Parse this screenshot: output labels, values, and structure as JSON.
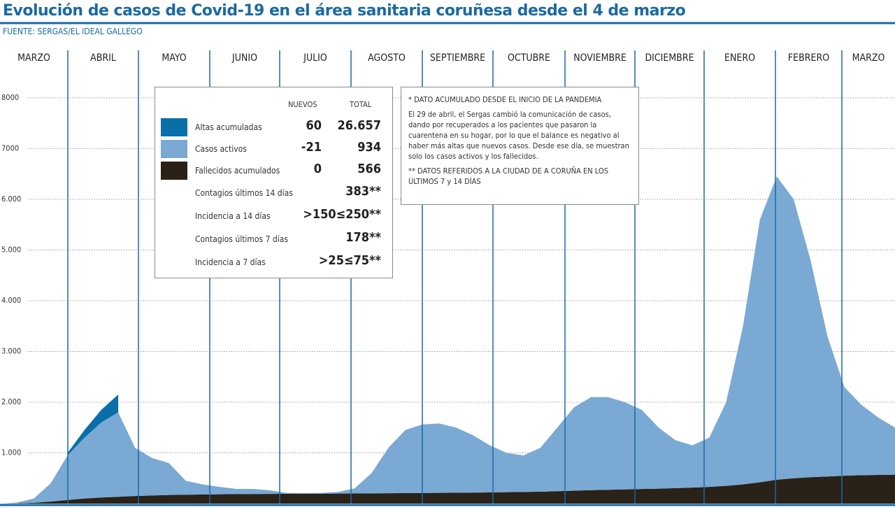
{
  "chart_data": {
    "type": "stacked-area",
    "title": "Evolución de casos de Covid-19 en el área sanitaria coruñesa desde el 4 de marzo",
    "source": "FUENTE: SERGAS/EL IDEAL GALLEGO",
    "months": [
      "MARZO",
      "ABRIL",
      "MAYO",
      "JUNIO",
      "JULIO",
      "AGOSTO",
      "SEPTIEMBRE",
      "OCTUBRE",
      "NOVIEMBRE",
      "DICIEMBRE",
      "ENERO",
      "FEBRERO",
      "MARZO"
    ],
    "ylim": [
      0,
      8550
    ],
    "yticks": [
      {
        "value": 1000,
        "label": "1.000"
      },
      {
        "value": 2000,
        "label": "2.000"
      },
      {
        "value": 3000,
        "label": "3.000"
      },
      {
        "value": 4000,
        "label": "4.000"
      },
      {
        "value": 5000,
        "label": "5.000"
      },
      {
        "value": 6000,
        "label": "6.000"
      },
      7000,
      8000
    ],
    "grid": true,
    "series": [
      {
        "name": "Fallecidos acumulados",
        "color": "#2a2118",
        "nuevos": "0",
        "total": "566",
        "values": [
          0,
          5,
          15,
          40,
          70,
          100,
          120,
          135,
          150,
          160,
          170,
          175,
          180,
          185,
          188,
          190,
          192,
          195,
          196,
          197,
          198,
          200,
          202,
          205,
          207,
          210,
          212,
          215,
          218,
          221,
          225,
          230,
          235,
          245,
          255,
          265,
          272,
          280,
          288,
          295,
          305,
          315,
          330,
          350,
          380,
          420,
          470,
          500,
          520,
          535,
          550,
          560,
          565,
          570
        ]
      },
      {
        "name": "Casos activos",
        "color": "#7aa9d4",
        "nuevos": "-21",
        "total": "934",
        "values": [
          0,
          15,
          85,
          360,
          880,
          1200,
          1480,
          1665,
          950,
          740,
          630,
          275,
          200,
          145,
          102,
          100,
          68,
          15,
          10,
          13,
          32,
          100,
          398,
          895,
          1243,
          1350,
          1368,
          1285,
          1132,
          929,
          775,
          720,
          865,
          1255,
          1645,
          1835,
          1828,
          1720,
          1562,
          1205,
          945,
          835,
          970,
          1650,
          3120,
          5180,
          5980,
          5500,
          4280,
          2765,
          1750,
          1390,
          1135,
          930
        ]
      },
      {
        "name": "Altas acumuladas",
        "color": "#0a6fa8",
        "nuevos": "60",
        "total": "26.657",
        "values": [
          null,
          null,
          null,
          null,
          50,
          150,
          250,
          350,
          null,
          null,
          null,
          null,
          null,
          null,
          null,
          null,
          null,
          null,
          null,
          null,
          null,
          null,
          null,
          null,
          null,
          null,
          null,
          null,
          null,
          null,
          null,
          null,
          null,
          null,
          null,
          null,
          null,
          null,
          null,
          null,
          null,
          null,
          null,
          null,
          null,
          null,
          null,
          null,
          null,
          null,
          null,
          null,
          null,
          null
        ]
      }
    ],
    "table_headers": [
      "NUEVOS",
      "TOTAL"
    ],
    "extra_rows": [
      {
        "label": "Contagios últimos 14 días",
        "value": "383**"
      },
      {
        "label": "Incidencia a 14 días",
        "value": ">150≤250**"
      },
      {
        "label": "Contagios últimos 7 días",
        "value": "178**"
      },
      {
        "label": "Incidencia a 7 días",
        "value": ">25≤75**"
      }
    ],
    "notes": [
      "* DATO ACUMULADO DESDE EL INICIO DE LA PANDEMIA",
      "El 29 de abril, el Sergas cambió la comunicación de casos, dando por recuperados a los pacientes que pasaron la cuarentena en su hogar, por lo que el balance es negativo al haber más altas que nuevos casos. Desde ese día, se muestran solo los casos activos y los fallecidos.",
      "** DATOS REFERIDOS A LA CIUDAD DE A CORUÑA EN LOS ÚLTIMOS 7 y 14 DÍAS"
    ]
  }
}
